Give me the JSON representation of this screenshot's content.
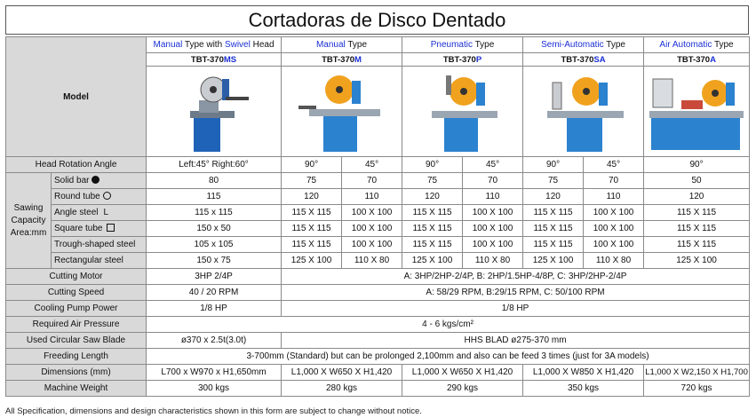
{
  "title": "Cortadoras de Disco Dentado",
  "model_label": "Model",
  "columns": [
    {
      "type_blue": "Manual",
      "type_rest1": " Type with ",
      "type_blue2": "Swivel",
      "type_rest2": " Head",
      "model_black": "TBT-370",
      "model_blue": "MS"
    },
    {
      "type_blue": "Manual",
      "type_rest1": " Type",
      "model_black": "TBT-370",
      "model_blue": "M"
    },
    {
      "type_blue": "Pneumatic",
      "type_rest1": " Type",
      "model_black": "TBT-370",
      "model_blue": "P"
    },
    {
      "type_blue": "Semi-Automatic",
      "type_rest1": " Type",
      "model_black": "TBT-370",
      "model_blue": "SA"
    },
    {
      "type_blue": "Air Automatic",
      "type_rest1": " Type",
      "model_black": "TBT-370",
      "model_blue": "A"
    }
  ],
  "head_rotation": {
    "label": "Head Rotation Angle",
    "ms": "Left:45° Right:60°",
    "m90": "90°",
    "m45": "45°",
    "p90": "90°",
    "p45": "45°",
    "sa90": "90°",
    "sa45": "45°",
    "a": "90°"
  },
  "sawing_label": "Sawing Capacity Area:mm",
  "sawing": [
    {
      "label": "Solid bar",
      "sym": "solid",
      "v": [
        "80",
        "75",
        "70",
        "75",
        "70",
        "75",
        "70",
        "50"
      ]
    },
    {
      "label": "Round tube",
      "sym": "circle",
      "v": [
        "115",
        "120",
        "110",
        "120",
        "110",
        "120",
        "110",
        "120"
      ]
    },
    {
      "label": "Angle steel",
      "sym": "L",
      "v": [
        "115 x 115",
        "115 X 115",
        "100 X 100",
        "115 X 115",
        "100 X 100",
        "115 X 115",
        "100 X 100",
        "115 X 115"
      ]
    },
    {
      "label": "Square tube",
      "sym": "square",
      "v": [
        "150 x 50",
        "115 X 115",
        "100 X 100",
        "115 X 115",
        "100 X 100",
        "115 X 115",
        "100 X 100",
        "115 X 115"
      ]
    },
    {
      "label": "Trough-shaped steel",
      "sym": "",
      "v": [
        "105 x 105",
        "115 X 115",
        "100 X 100",
        "115 X 115",
        "100 X 100",
        "115 X 115",
        "100 X 100",
        "115 X 115"
      ]
    },
    {
      "label": "Rectangular steel",
      "sym": "",
      "v": [
        "150 x 75",
        "125 X 100",
        "110 X 80",
        "125 X 100",
        "110 X 80",
        "125 X 100",
        "110 X 80",
        "125 X 100"
      ]
    }
  ],
  "cutting_motor": {
    "label": "Cutting Motor",
    "ms": "3HP 2/4P",
    "rest": "A: 3HP/2HP-2/4P, B: 2HP/1.5HP-4/8P, C: 3HP/2HP-2/4P"
  },
  "cutting_speed": {
    "label": "Cutting Speed",
    "ms": "40 / 20 RPM",
    "rest": "A: 58/29 RPM, B:29/15 RPM, C: 50/100 RPM"
  },
  "cooling_pump": {
    "label": "Cooling Pump Power",
    "ms": "1/8 HP",
    "rest": "1/8 HP"
  },
  "air_pressure": {
    "label": "Required Air Pressure",
    "rest": "4 - 6 kgs/cm²"
  },
  "saw_blade": {
    "label": "Used Circular Saw Blade",
    "ms": "ø370 x 2.5t(3.0t)",
    "rest": "HHS BLAD ø275-370 mm"
  },
  "freeding": {
    "label": "Freeding Length",
    "rest": "3-700mm (Standard) but can be prolonged 2,100mm and also can be feed 3 times (just for 3A models)"
  },
  "dimensions": {
    "label": "Dimensions (mm)",
    "v": [
      "L700 x W970 x H1,650mm",
      "L1,000 X W650 X H1,420",
      "L1,000 X W650 X H1,420",
      "L1,000 X W850 X H1,420",
      "L1,000 X W2,150 X H1,700"
    ]
  },
  "weight": {
    "label": "Machine Weight",
    "v": [
      "300 kgs",
      "280 kgs",
      "290 kgs",
      "350 kgs",
      "720 kgs"
    ]
  },
  "footer": "All Specification, dimensions and design characteristics shown in this form are subject to change without notice."
}
